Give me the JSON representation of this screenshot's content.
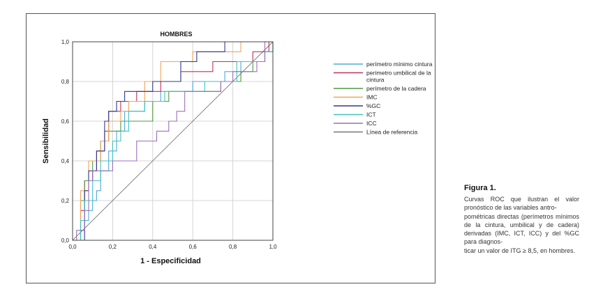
{
  "figure": {
    "label": "Figura 1.",
    "caption": "Curvas ROC que ilustran el valor pronóstico de las variables antro-\npométricas directas (perímetros mínimos de la cintura, umbilical y de cadera) derivadas (IMC, ICT, ICC) y del %GC para diagnos-\nticar un valor de ITG ≥ 8,5, en hombres."
  },
  "chart_data": {
    "type": "line",
    "title": "HOMBRES",
    "xlabel": "1 - Especificidad",
    "ylabel": "Sensibilidad",
    "xlim": [
      0,
      1
    ],
    "ylim": [
      0,
      1
    ],
    "x_ticks": [
      "0,0",
      "0,2",
      "0,4",
      "0,6",
      "0,8",
      "1,0"
    ],
    "y_ticks": [
      "0,0",
      "0,2",
      "0,4",
      "0,6",
      "0,8",
      "1,0"
    ],
    "grid": true,
    "legend_position": "right",
    "series": [
      {
        "name": "perímetro mínimo cintura",
        "color": "#4fa8d8",
        "points": [
          [
            0,
            0
          ],
          [
            0.04,
            0
          ],
          [
            0.04,
            0.05
          ],
          [
            0.06,
            0.05
          ],
          [
            0.06,
            0.1
          ],
          [
            0.08,
            0.1
          ],
          [
            0.08,
            0.15
          ],
          [
            0.1,
            0.15
          ],
          [
            0.1,
            0.2
          ],
          [
            0.12,
            0.2
          ],
          [
            0.12,
            0.25
          ],
          [
            0.14,
            0.25
          ],
          [
            0.14,
            0.35
          ],
          [
            0.18,
            0.35
          ],
          [
            0.18,
            0.45
          ],
          [
            0.22,
            0.45
          ],
          [
            0.22,
            0.55
          ],
          [
            0.26,
            0.55
          ],
          [
            0.26,
            0.65
          ],
          [
            0.36,
            0.65
          ],
          [
            0.36,
            0.7
          ],
          [
            0.44,
            0.7
          ],
          [
            0.44,
            0.75
          ],
          [
            0.6,
            0.75
          ],
          [
            0.6,
            0.8
          ],
          [
            0.76,
            0.8
          ],
          [
            0.76,
            0.85
          ],
          [
            0.84,
            0.85
          ],
          [
            0.84,
            0.9
          ],
          [
            0.96,
            0.9
          ],
          [
            0.96,
            0.95
          ],
          [
            1,
            0.95
          ],
          [
            1,
            1
          ]
        ]
      },
      {
        "name": "perímetro umbilical de la\ncintura",
        "color": "#c0305a",
        "points": [
          [
            0,
            0
          ],
          [
            0.04,
            0
          ],
          [
            0.04,
            0.15
          ],
          [
            0.06,
            0.15
          ],
          [
            0.06,
            0.3
          ],
          [
            0.1,
            0.3
          ],
          [
            0.1,
            0.35
          ],
          [
            0.12,
            0.35
          ],
          [
            0.12,
            0.45
          ],
          [
            0.16,
            0.45
          ],
          [
            0.16,
            0.55
          ],
          [
            0.18,
            0.55
          ],
          [
            0.18,
            0.65
          ],
          [
            0.24,
            0.65
          ],
          [
            0.24,
            0.7
          ],
          [
            0.32,
            0.7
          ],
          [
            0.32,
            0.75
          ],
          [
            0.44,
            0.75
          ],
          [
            0.44,
            0.8
          ],
          [
            0.54,
            0.8
          ],
          [
            0.54,
            0.85
          ],
          [
            0.7,
            0.85
          ],
          [
            0.7,
            0.9
          ],
          [
            0.9,
            0.9
          ],
          [
            0.9,
            0.95
          ],
          [
            0.98,
            0.95
          ],
          [
            0.98,
            1
          ],
          [
            1,
            1
          ]
        ]
      },
      {
        "name": "perímetro de la cadera",
        "color": "#4e9a3c",
        "points": [
          [
            0,
            0
          ],
          [
            0.04,
            0
          ],
          [
            0.04,
            0.2
          ],
          [
            0.06,
            0.2
          ],
          [
            0.06,
            0.3
          ],
          [
            0.1,
            0.3
          ],
          [
            0.1,
            0.4
          ],
          [
            0.14,
            0.4
          ],
          [
            0.14,
            0.5
          ],
          [
            0.18,
            0.5
          ],
          [
            0.18,
            0.55
          ],
          [
            0.24,
            0.55
          ],
          [
            0.24,
            0.6
          ],
          [
            0.4,
            0.6
          ],
          [
            0.4,
            0.7
          ],
          [
            0.48,
            0.7
          ],
          [
            0.48,
            0.75
          ],
          [
            0.74,
            0.75
          ],
          [
            0.74,
            0.8
          ],
          [
            0.84,
            0.8
          ],
          [
            0.84,
            0.85
          ],
          [
            0.9,
            0.85
          ],
          [
            0.9,
            0.9
          ],
          [
            0.96,
            0.9
          ],
          [
            0.96,
            0.95
          ],
          [
            1,
            0.95
          ],
          [
            1,
            1
          ]
        ]
      },
      {
        "name": "IMC",
        "color": "#f0a45a",
        "points": [
          [
            0,
            0
          ],
          [
            0.04,
            0
          ],
          [
            0.04,
            0.25
          ],
          [
            0.08,
            0.25
          ],
          [
            0.08,
            0.4
          ],
          [
            0.14,
            0.4
          ],
          [
            0.14,
            0.5
          ],
          [
            0.18,
            0.5
          ],
          [
            0.18,
            0.6
          ],
          [
            0.24,
            0.6
          ],
          [
            0.24,
            0.65
          ],
          [
            0.28,
            0.65
          ],
          [
            0.28,
            0.7
          ],
          [
            0.36,
            0.7
          ],
          [
            0.36,
            0.8
          ],
          [
            0.44,
            0.8
          ],
          [
            0.44,
            0.9
          ],
          [
            0.6,
            0.9
          ],
          [
            0.6,
            0.95
          ],
          [
            0.84,
            0.95
          ],
          [
            0.84,
            1
          ],
          [
            1,
            1
          ]
        ]
      },
      {
        "name": "%GC",
        "color": "#2e3a8c",
        "points": [
          [
            0,
            0
          ],
          [
            0.06,
            0
          ],
          [
            0.06,
            0.25
          ],
          [
            0.08,
            0.25
          ],
          [
            0.08,
            0.35
          ],
          [
            0.12,
            0.35
          ],
          [
            0.12,
            0.45
          ],
          [
            0.16,
            0.45
          ],
          [
            0.16,
            0.6
          ],
          [
            0.18,
            0.6
          ],
          [
            0.18,
            0.65
          ],
          [
            0.22,
            0.65
          ],
          [
            0.22,
            0.7
          ],
          [
            0.26,
            0.7
          ],
          [
            0.26,
            0.75
          ],
          [
            0.4,
            0.75
          ],
          [
            0.4,
            0.8
          ],
          [
            0.54,
            0.8
          ],
          [
            0.54,
            0.9
          ],
          [
            0.62,
            0.9
          ],
          [
            0.62,
            0.95
          ],
          [
            0.76,
            0.95
          ],
          [
            0.76,
            1
          ],
          [
            1,
            1
          ]
        ]
      },
      {
        "name": "ICT",
        "color": "#3ec4c0",
        "points": [
          [
            0,
            0
          ],
          [
            0.04,
            0
          ],
          [
            0.04,
            0.1
          ],
          [
            0.06,
            0.1
          ],
          [
            0.06,
            0.2
          ],
          [
            0.1,
            0.2
          ],
          [
            0.1,
            0.3
          ],
          [
            0.14,
            0.3
          ],
          [
            0.14,
            0.4
          ],
          [
            0.2,
            0.4
          ],
          [
            0.2,
            0.5
          ],
          [
            0.24,
            0.5
          ],
          [
            0.24,
            0.55
          ],
          [
            0.28,
            0.55
          ],
          [
            0.28,
            0.65
          ],
          [
            0.36,
            0.65
          ],
          [
            0.36,
            0.7
          ],
          [
            0.46,
            0.7
          ],
          [
            0.46,
            0.75
          ],
          [
            0.66,
            0.75
          ],
          [
            0.66,
            0.8
          ],
          [
            0.82,
            0.8
          ],
          [
            0.82,
            0.9
          ],
          [
            0.96,
            0.9
          ],
          [
            0.96,
            0.95
          ],
          [
            1,
            0.95
          ],
          [
            1,
            1
          ]
        ]
      },
      {
        "name": "ICC",
        "color": "#9c6fb8",
        "points": [
          [
            0,
            0
          ],
          [
            0.02,
            0
          ],
          [
            0.02,
            0.05
          ],
          [
            0.06,
            0.05
          ],
          [
            0.06,
            0.15
          ],
          [
            0.08,
            0.15
          ],
          [
            0.08,
            0.3
          ],
          [
            0.1,
            0.3
          ],
          [
            0.1,
            0.35
          ],
          [
            0.2,
            0.35
          ],
          [
            0.2,
            0.4
          ],
          [
            0.32,
            0.4
          ],
          [
            0.32,
            0.5
          ],
          [
            0.42,
            0.5
          ],
          [
            0.42,
            0.55
          ],
          [
            0.48,
            0.55
          ],
          [
            0.48,
            0.6
          ],
          [
            0.52,
            0.6
          ],
          [
            0.52,
            0.65
          ],
          [
            0.56,
            0.65
          ],
          [
            0.56,
            0.75
          ],
          [
            0.74,
            0.75
          ],
          [
            0.74,
            0.8
          ],
          [
            0.8,
            0.8
          ],
          [
            0.8,
            0.85
          ],
          [
            0.92,
            0.85
          ],
          [
            0.92,
            0.9
          ],
          [
            0.96,
            0.9
          ],
          [
            0.96,
            1
          ],
          [
            1,
            1
          ]
        ]
      },
      {
        "name": "Línea de referencia",
        "color": "#777777",
        "points": [
          [
            0,
            0
          ],
          [
            1,
            1
          ]
        ]
      }
    ]
  }
}
